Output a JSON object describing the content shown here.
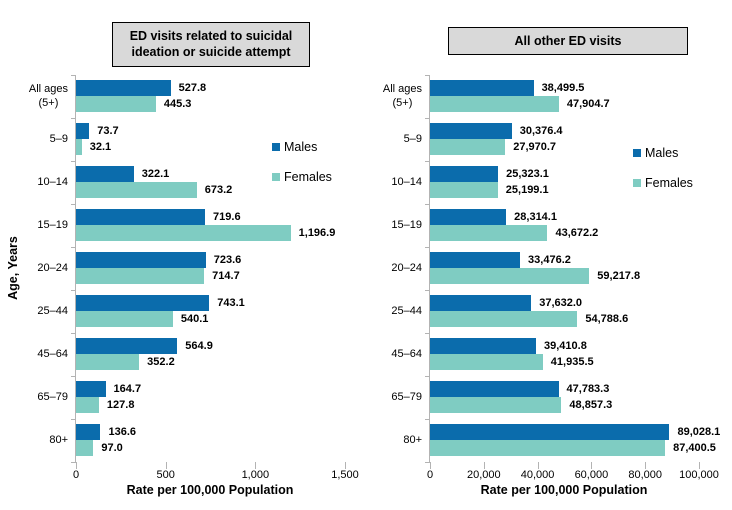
{
  "colors": {
    "males": "#0b6cac",
    "females": "#7fccc2",
    "title_box_bg": "#d9d9d9",
    "title_box_border": "#000000",
    "axis_line": "#b3b3b3",
    "text": "#000000"
  },
  "chart_data": [
    {
      "type": "bar",
      "orientation": "horizontal",
      "title": "ED visits related to suicidal ideation or suicide attempt",
      "xlabel": "Rate per 100,000 Population",
      "ylabel": "Age, Years",
      "xlim": [
        0,
        1500
      ],
      "xticks": [
        0,
        500,
        1000,
        1500
      ],
      "xtick_labels": [
        "0",
        "500",
        "1,000",
        "1,500"
      ],
      "legend_position": "right-inside",
      "grid": false,
      "categories": [
        "All ages (5+)",
        "5–9",
        "10–14",
        "15–19",
        "20–24",
        "25–44",
        "45–64",
        "65–79",
        "80+"
      ],
      "category_display": [
        [
          "All ages",
          "(5+)"
        ],
        [
          "5–9"
        ],
        [
          "10–14"
        ],
        [
          "15–19"
        ],
        [
          "20–24"
        ],
        [
          "25–44"
        ],
        [
          "45–64"
        ],
        [
          "65–79"
        ],
        [
          "80+"
        ]
      ],
      "series": [
        {
          "name": "Males",
          "values": [
            527.8,
            73.7,
            322.1,
            719.6,
            723.6,
            743.1,
            564.9,
            164.7,
            136.6
          ],
          "labels": [
            "527.8",
            "73.7",
            "322.1",
            "719.6",
            "723.6",
            "743.1",
            "564.9",
            "164.7",
            "136.6"
          ]
        },
        {
          "name": "Females",
          "values": [
            445.3,
            32.1,
            673.2,
            1196.9,
            714.7,
            540.1,
            352.2,
            127.8,
            97.0
          ],
          "labels": [
            "445.3",
            "32.1",
            "673.2",
            "1,196.9",
            "714.7",
            "540.1",
            "352.2",
            "127.8",
            "97.0"
          ]
        }
      ]
    },
    {
      "type": "bar",
      "orientation": "horizontal",
      "title": "All other ED visits",
      "xlabel": "Rate per 100,000 Population",
      "ylabel": "Age, Years",
      "xlim": [
        0,
        100000
      ],
      "xticks": [
        0,
        20000,
        40000,
        60000,
        80000,
        100000
      ],
      "xtick_labels": [
        "0",
        "20,000",
        "40,000",
        "60,000",
        "80,000",
        "100,000"
      ],
      "legend_position": "right-inside",
      "grid": false,
      "categories": [
        "All ages (5+)",
        "5–9",
        "10–14",
        "15–19",
        "20–24",
        "25–44",
        "45–64",
        "65–79",
        "80+"
      ],
      "category_display": [
        [
          "All ages",
          "(5+)"
        ],
        [
          "5–9"
        ],
        [
          "10–14"
        ],
        [
          "15–19"
        ],
        [
          "20–24"
        ],
        [
          "25–44"
        ],
        [
          "45–64"
        ],
        [
          "65–79"
        ],
        [
          "80+"
        ]
      ],
      "series": [
        {
          "name": "Males",
          "values": [
            38499.5,
            30376.4,
            25323.1,
            28314.1,
            33476.2,
            37632.0,
            39410.8,
            47783.3,
            89028.1
          ],
          "labels": [
            "38,499.5",
            "30,376.4",
            "25,323.1",
            "28,314.1",
            "33,476.2",
            "37,632.0",
            "39,410.8",
            "47,783.3",
            "89,028.1"
          ]
        },
        {
          "name": "Females",
          "values": [
            47904.7,
            27970.7,
            25199.1,
            43672.2,
            59217.8,
            54788.6,
            41935.5,
            48857.3,
            87400.5
          ],
          "labels": [
            "47,904.7",
            "27,970.7",
            "25,199.1",
            "43,672.2",
            "59,217.8",
            "54,788.6",
            "41,935.5",
            "48,857.3",
            "87,400.5"
          ]
        }
      ]
    }
  ]
}
